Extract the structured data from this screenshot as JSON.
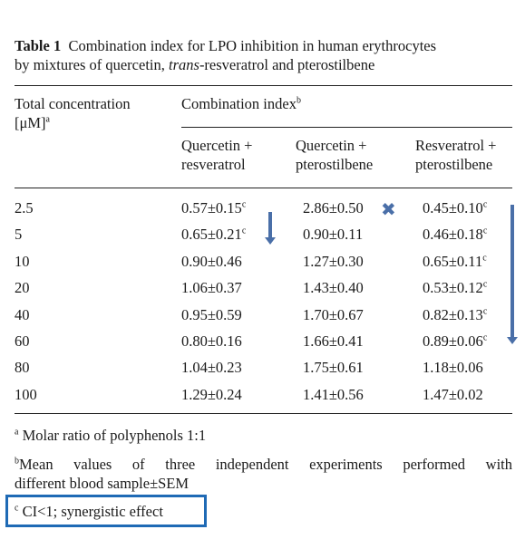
{
  "caption": {
    "prefix": "Table 1",
    "text_line1": "Combination index for LPO inhibition in human erythrocytes",
    "text_line2_a": "by mixtures of quercetin, ",
    "text_line2_italic": "trans",
    "text_line2_b": "-resveratrol and pterostilbene"
  },
  "header": {
    "col0_line1": "Total concentration",
    "col0_line2": "[μM]",
    "col0_sup": "a",
    "group_label": "Combination index",
    "group_sup": "b",
    "col1_line1": "Quercetin +",
    "col1_line2": "resveratrol",
    "col2_line1": "Quercetin +",
    "col2_line2": "pterostilbene",
    "col3_line1": "Resveratrol +",
    "col3_line2": "pterostilbene"
  },
  "rows": [
    {
      "conc": "2.5",
      "c1": "0.57±0.15",
      "c1_sup": "c",
      "c2": "2.86±0.50",
      "c2_sup": "",
      "c3": "0.45±0.10",
      "c3_sup": "c"
    },
    {
      "conc": "5",
      "c1": "0.65±0.21",
      "c1_sup": "c",
      "c2": "0.90±0.11",
      "c2_sup": "",
      "c3": "0.46±0.18",
      "c3_sup": "c"
    },
    {
      "conc": "10",
      "c1": "0.90±0.46",
      "c1_sup": "",
      "c2": "1.27±0.30",
      "c2_sup": "",
      "c3": "0.65±0.11",
      "c3_sup": "c"
    },
    {
      "conc": "20",
      "c1": "1.06±0.37",
      "c1_sup": "",
      "c2": "1.43±0.40",
      "c2_sup": "",
      "c3": "0.53±0.12",
      "c3_sup": "c"
    },
    {
      "conc": "40",
      "c1": "0.95±0.59",
      "c1_sup": "",
      "c2": "1.70±0.67",
      "c2_sup": "",
      "c3": "0.82±0.13",
      "c3_sup": "c"
    },
    {
      "conc": "60",
      "c1": "0.80±0.16",
      "c1_sup": "",
      "c2": "1.66±0.41",
      "c2_sup": "",
      "c3": "0.89±0.06",
      "c3_sup": "c"
    },
    {
      "conc": "80",
      "c1": "1.04±0.23",
      "c1_sup": "",
      "c2": "1.75±0.61",
      "c2_sup": "",
      "c3": "1.18±0.06",
      "c3_sup": ""
    },
    {
      "conc": "100",
      "c1": "1.29±0.24",
      "c1_sup": "",
      "c2": "1.41±0.56",
      "c2_sup": "",
      "c3": "1.47±0.02",
      "c3_sup": ""
    }
  ],
  "footnotes": {
    "a_mark": "a",
    "a_text": "Molar ratio of polyphenols 1:1",
    "b_mark": "b",
    "b_line1": "Mean values of three independent experiments performed with",
    "b_line2": "different blood sample±SEM",
    "c_mark": "c",
    "c_text": "CI<1; synergistic effect"
  },
  "annotations": {
    "highlight_color": "#1f6ab5",
    "arrow_color": "#4a6fa8",
    "x_mark_icon": "✖"
  }
}
